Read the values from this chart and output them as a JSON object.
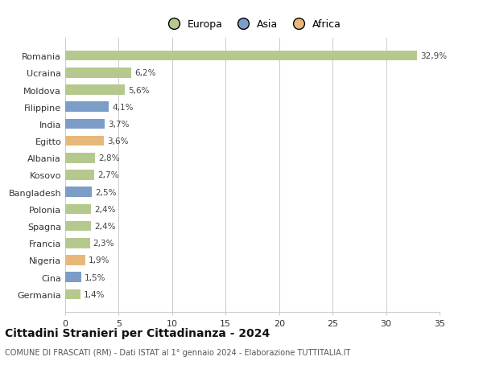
{
  "categories": [
    "Germania",
    "Cina",
    "Nigeria",
    "Francia",
    "Spagna",
    "Polonia",
    "Bangladesh",
    "Kosovo",
    "Albania",
    "Egitto",
    "India",
    "Filippine",
    "Moldova",
    "Ucraina",
    "Romania"
  ],
  "values": [
    1.4,
    1.5,
    1.9,
    2.3,
    2.4,
    2.4,
    2.5,
    2.7,
    2.8,
    3.6,
    3.7,
    4.1,
    5.6,
    6.2,
    32.9
  ],
  "bar_colors": [
    "#b5c98e",
    "#7b9dc7",
    "#e8b87a",
    "#b5c98e",
    "#b5c98e",
    "#b5c98e",
    "#7b9dc7",
    "#b5c98e",
    "#b5c98e",
    "#e8b87a",
    "#7b9dc7",
    "#7b9dc7",
    "#b5c98e",
    "#b5c98e",
    "#b5c98e"
  ],
  "labels": [
    "1,4%",
    "1,5%",
    "1,9%",
    "2,3%",
    "2,4%",
    "2,4%",
    "2,5%",
    "2,7%",
    "2,8%",
    "3,6%",
    "3,7%",
    "4,1%",
    "5,6%",
    "6,2%",
    "32,9%"
  ],
  "title": "Cittadini Stranieri per Cittadinanza - 2024",
  "subtitle": "COMUNE DI FRASCATI (RM) - Dati ISTAT al 1° gennaio 2024 - Elaborazione TUTTITALIA.IT",
  "xlim": [
    0,
    35
  ],
  "xticks": [
    0,
    5,
    10,
    15,
    20,
    25,
    30,
    35
  ],
  "legend_labels": [
    "Europa",
    "Asia",
    "Africa"
  ],
  "legend_colors": [
    "#b5c98e",
    "#7b9dc7",
    "#e8b87a"
  ],
  "background_color": "#ffffff",
  "grid_color": "#cccccc"
}
